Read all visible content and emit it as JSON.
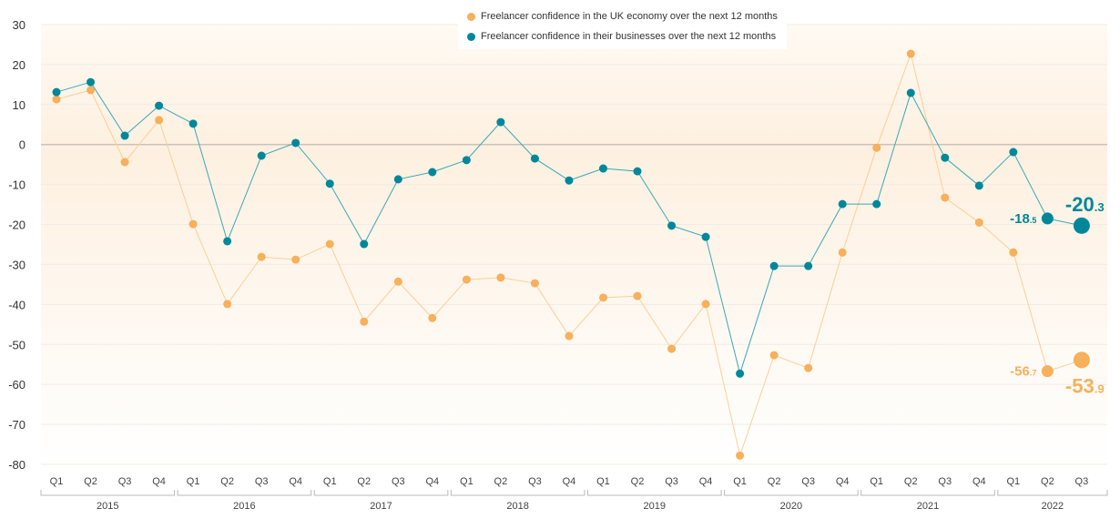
{
  "chart_data": {
    "type": "line",
    "title": "",
    "xlabel": "",
    "ylabel": "",
    "ylim": [
      -80,
      30
    ],
    "yticks": [
      30,
      20,
      10,
      0,
      -10,
      -20,
      -30,
      -40,
      -50,
      -60,
      -70,
      -80
    ],
    "grid": true,
    "legend_placement": "top-center",
    "years": [
      "2015",
      "2016",
      "2017",
      "2018",
      "2019",
      "2020",
      "2021",
      "2022"
    ],
    "quarters": [
      "Q1",
      "Q2",
      "Q3",
      "Q4",
      "Q1",
      "Q2",
      "Q3",
      "Q4",
      "Q1",
      "Q2",
      "Q3",
      "Q4",
      "Q1",
      "Q2",
      "Q3",
      "Q4",
      "Q1",
      "Q2",
      "Q3",
      "Q4",
      "Q1",
      "Q2",
      "Q3",
      "Q4",
      "Q1",
      "Q2",
      "Q3",
      "Q4",
      "Q1",
      "Q2",
      "Q3"
    ],
    "series": [
      {
        "name": "Freelancer confidence in the UK economy over the next 12 months",
        "color": "#f7b05b",
        "values": [
          11.3,
          13.6,
          -4.4,
          6.1,
          -19.9,
          -39.9,
          -28.1,
          -28.8,
          -24.9,
          -44.3,
          -34.3,
          -43.4,
          -33.8,
          -33.3,
          -34.7,
          -47.9,
          -38.3,
          -37.9,
          -51.1,
          -39.9,
          -77.8,
          -52.7,
          -55.9,
          -27,
          -0.8,
          22.7,
          -13.3,
          -19.5,
          -27,
          -56.7,
          -53.9
        ]
      },
      {
        "name": "Freelancer confidence in their businesses over the next 12 months",
        "color": "#00879a",
        "values": [
          13.1,
          15.6,
          2.2,
          9.7,
          5.2,
          -24.2,
          -2.8,
          0.4,
          -9.8,
          -24.9,
          -8.7,
          -6.9,
          -3.9,
          5.6,
          -3.5,
          -9.0,
          -6.0,
          -6.7,
          -20.3,
          -23.1,
          -57.3,
          -30.4,
          -30.4,
          -14.9,
          -14.9,
          12.9,
          -3.3,
          -10.3,
          -1.9,
          -18.5,
          -20.3
        ]
      }
    ],
    "annotations": [
      {
        "series": 1,
        "index": 29,
        "int": "-18",
        "dec": ".5"
      },
      {
        "series": 1,
        "index": 30,
        "int": "-20",
        "dec": ".3"
      },
      {
        "series": 0,
        "index": 29,
        "int": "-56",
        "dec": ".7"
      },
      {
        "series": 0,
        "index": 30,
        "int": "-53",
        "dec": ".9"
      }
    ]
  }
}
